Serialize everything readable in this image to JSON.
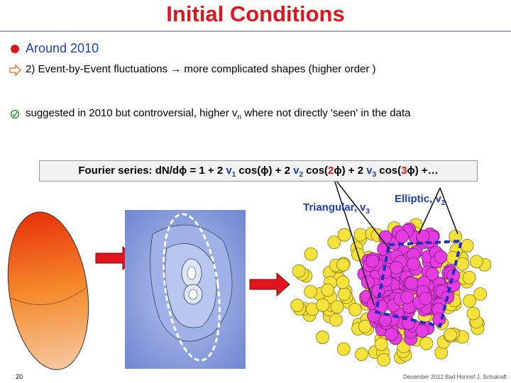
{
  "header": {
    "title": "Initial Conditions"
  },
  "bullets": [
    {
      "parts": [
        "Around 2010"
      ]
    },
    {
      "parts": [
        "2)  Event-by-Event fluctuations → more complicated shapes (higher order )"
      ]
    },
    {
      "parts": [
        "suggested in 2010 but controversial, higher v",
        "n",
        " where not directly 'seen' in the data"
      ]
    }
  ],
  "formula": {
    "parts": [
      "Fourier series: dN/dϕ = 1 + 2 ",
      "v",
      "1",
      " cos(ϕ)  + 2 ",
      "v",
      "2",
      " cos(",
      "2",
      "ϕ) + 2 ",
      "v",
      "3",
      " cos(",
      "3",
      "ϕ) +…"
    ]
  },
  "labels": [
    {
      "parts": [
        "Triangular, v",
        "3"
      ]
    },
    {
      "parts": [
        "Elliptic, v",
        "2"
      ]
    }
  ],
  "footer": {
    "page": "20",
    "credit": "December 2012 Bad Honnef J. Schukraft"
  }
}
